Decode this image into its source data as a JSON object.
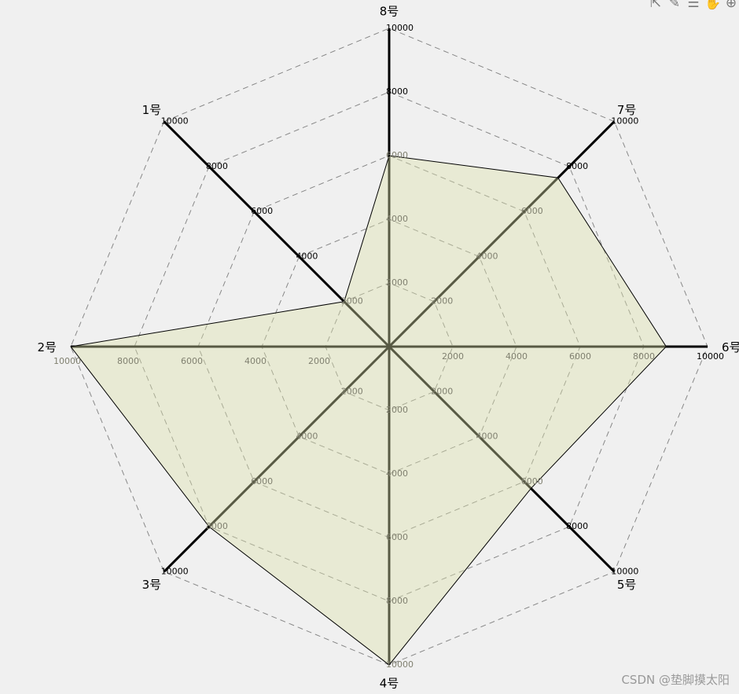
{
  "chart_data": {
    "type": "radar",
    "categories": [
      "1号",
      "2号",
      "3号",
      "4号",
      "5号",
      "6号",
      "7号",
      "8号"
    ],
    "max": 10000,
    "ticks": [
      2000,
      4000,
      6000,
      8000,
      10000
    ],
    "series": [
      {
        "values": [
          2000,
          10000,
          8000,
          10000,
          6300,
          8700,
          7500,
          6000
        ]
      }
    ],
    "grid": true,
    "colors": {
      "fill": "#dce1aa",
      "stroke": "#000000",
      "grid": "#888888"
    }
  },
  "toolbox": {
    "icons": [
      "export-icon",
      "brush-icon",
      "data-view-icon",
      "pan-icon",
      "zoom-icon"
    ]
  },
  "watermark": "CSDN @垫脚摸太阳"
}
